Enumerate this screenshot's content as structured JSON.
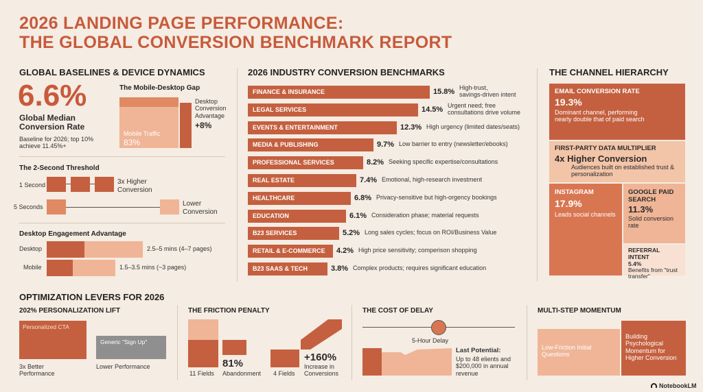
{
  "title": {
    "line1": "2026 LANDING PAGE PERFORMANCE:",
    "line2": "THE GLOBAL CONVERSION BENCHMARK REPORT"
  },
  "baselines": {
    "heading": "GLOBAL BASELINES & DEVICE DYNAMICS",
    "big_value": "6.6%",
    "big_label": "Global Median Conversion Rate",
    "note": "Baseline for 2026; top 10% achieve 11.45%+",
    "gap_title": "The Mobile-Desktop Gap",
    "mobile_label": "Mobile Traffic",
    "mobile_value": "83%",
    "desktop_adv_label": "Desktop Conversion Advantage",
    "desktop_adv_value": "+8%",
    "threshold_title": "The 2-Second Threshold",
    "one_second": "1 Second",
    "five_seconds": "5 Seconds",
    "higher_conv": "3x Higher Conversion",
    "lower_conv": "Lower Conversion",
    "engagement_title": "Desktop Engagement Advantage",
    "desktop_label": "Desktop",
    "desktop_value": "2.5–5 mins (4–7 pages)",
    "mobile_eng_label": "Mobile",
    "mobile_eng_value": "1.5–3.5 mins (~3 pages)"
  },
  "industry": {
    "heading": "2026 INDUSTRY CONVERSION BENCHMARKS",
    "rows": [
      {
        "name": "FINANCE & INSURANCE",
        "value": "15.8%",
        "note": "High-trust,\nsavings-driven intent"
      },
      {
        "name": "LEGAL SERVICES",
        "value": "14.5%",
        "note": "Urgent need; free\nconsultations drive volume"
      },
      {
        "name": "EVENTS & ENTERTAINMENT",
        "value": "12.3%",
        "note": "High urgency (limited dates/seats)"
      },
      {
        "name": "MEDIA & PUBLISHING",
        "value": "9.7%",
        "note": "Low barrier to entry (newsletter/ebooks)"
      },
      {
        "name": "PROFESSIONAL SERVICES",
        "value": "8.2%",
        "note": "Seeking specific expertise/consultations"
      },
      {
        "name": "REAL ESTATE",
        "value": "7.4%",
        "note": "Emotional, high-research investment"
      },
      {
        "name": "HEALTHCARE",
        "value": "6.8%",
        "note": "Privacy-sensitive but high-orgency bookings"
      },
      {
        "name": "EDUCATION",
        "value": "6.1%",
        "note": "Consideration phase; material requests"
      },
      {
        "name": "B23 SERVICES",
        "value": "5.2%",
        "note": "Long sales cycles; focus on ROI/Business Value"
      },
      {
        "name": "RETAIL & E-COMMERCE",
        "value": "4.2%",
        "note": "High price sensitivity; comperison shopping"
      },
      {
        "name": "B23 SAAS & TECH",
        "value": "3.8%",
        "note": "Complex products; requires significant education"
      }
    ]
  },
  "channel": {
    "heading": "THE CHANNEL HIERARCHY",
    "email_label": "EMAIL CONVERSION RATE",
    "email_value": "19.3%",
    "email_note": "Dominant channel, performing nearly double that of paid search",
    "fp_label": "FIRST-PARTY DATA MULTIPLIER",
    "fp_value": "4x Higher Conversion",
    "fp_note": "Audiences built on established trust & personalization",
    "ig_label": "INSTAGRAM",
    "ig_value": "17.9%",
    "ig_note": "Leads social channels",
    "gps_label": "GOOGLE PAID SEARCH",
    "gps_value": "11.3%",
    "gps_note": "Solid conversion rate",
    "ref_label": "REFERRAL INTENT",
    "ref_value": "5.4%",
    "ref_note": "Benefits from \"trust transfer\""
  },
  "levers": {
    "heading": "OPTIMIZATION LEVERS FOR 2026",
    "pers_title": "202% PERSONALIZATION LIFT",
    "pers_cta": "Personalized CTA",
    "pers_generic": "Generic \"Sign Up\"",
    "pers_better": "3x Better Performance",
    "pers_lower": "Lower Performance",
    "friction_title": "THE FRICTION PENALTY",
    "fields11": "11 Fields",
    "abandon_value": "81%",
    "abandon_label": "Abandonment",
    "fields4": "4 Fields",
    "increase_value": "+160%",
    "increase_label": "Increase in Conversions",
    "delay_title": "THE COST OF DELAY",
    "delay_label": "5-Hour Delay",
    "lost_label": "Last Potential:",
    "lost_text": "Up to 48 elients and $200,000 in annual revenue",
    "multi_title": "MULTI-STEP MOMENTUM",
    "low_friction": "Low-Friction Initial Questions",
    "building": "Building Psychological Momentum for Higher Conversion"
  },
  "brand": "NotebookLM",
  "colors": {
    "accent": "#c75a3b",
    "bar": "#c4603f",
    "light": "#efb596",
    "bg": "#f5ece3"
  }
}
